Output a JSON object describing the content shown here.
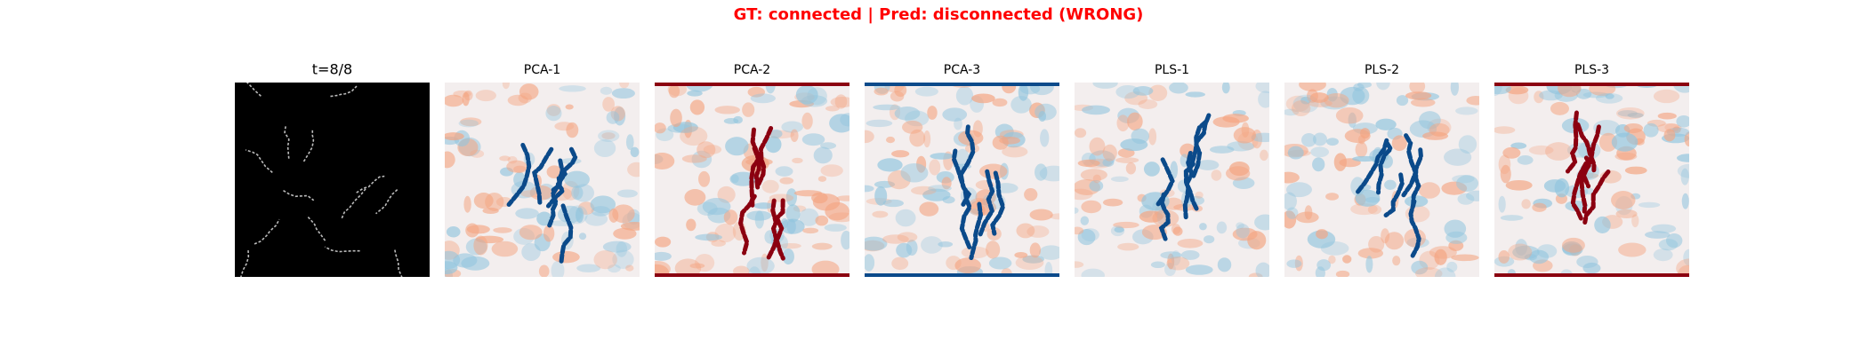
{
  "title": "GT: connected | Pred: disconnected (WRONG)",
  "panels": [
    {
      "title": "t=8/8"
    },
    {
      "title": "PCA-1"
    },
    {
      "title": "PCA-2"
    },
    {
      "title": "PCA-3"
    },
    {
      "title": "PLS-1"
    },
    {
      "title": "PLS-2"
    },
    {
      "title": "PLS-3"
    }
  ]
}
